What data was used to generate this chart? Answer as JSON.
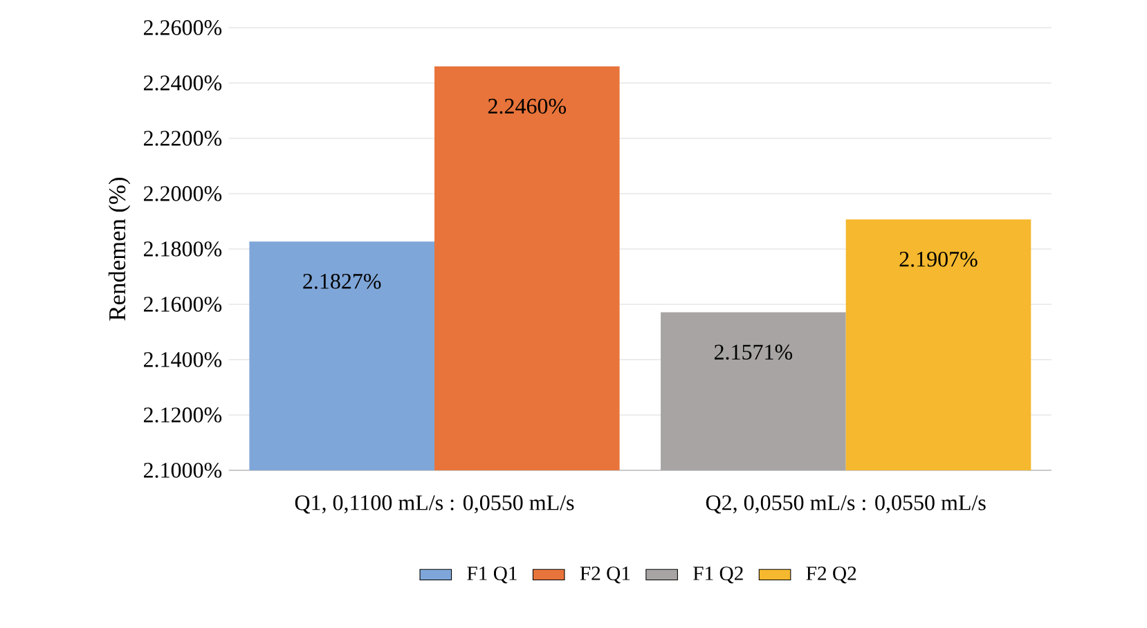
{
  "chart_data": {
    "type": "bar",
    "ylabel": "Rendemen (%)",
    "categories": [
      "Q1, 0,1100 mL/s : 0,0550 mL/s",
      "Q2, 0,0550 mL/s : 0,0550 mL/s"
    ],
    "series": [
      {
        "name": "F1 Q1",
        "color": "#7fa6d8",
        "values": [
          2.1827,
          null
        ],
        "value_labels": [
          "2.1827%",
          null
        ]
      },
      {
        "name": "F2 Q1",
        "color": "#e8743b",
        "values": [
          2.246,
          null
        ],
        "value_labels": [
          "2.2460%",
          null
        ]
      },
      {
        "name": "F1 Q2",
        "color": "#a8a4a4",
        "values": [
          null,
          2.1571
        ],
        "value_labels": [
          null,
          "2.1571%"
        ]
      },
      {
        "name": "F2 Q2",
        "color": "#f5b82e",
        "values": [
          null,
          2.1907
        ],
        "value_labels": [
          null,
          "2.1907%"
        ]
      }
    ],
    "ylim": [
      2.1,
      2.26
    ],
    "yticks": [
      {
        "value": 2.1,
        "label": "2.1000%"
      },
      {
        "value": 2.12,
        "label": "2.1200%"
      },
      {
        "value": 2.14,
        "label": "2.1400%"
      },
      {
        "value": 2.16,
        "label": "2.1600%"
      },
      {
        "value": 2.18,
        "label": "2.1800%"
      },
      {
        "value": 2.2,
        "label": "2.2000%"
      },
      {
        "value": 2.22,
        "label": "2.2200%"
      },
      {
        "value": 2.24,
        "label": "2.2400%"
      },
      {
        "value": 2.26,
        "label": "2.2600%"
      }
    ],
    "grid": "y",
    "legend": "bottom"
  }
}
